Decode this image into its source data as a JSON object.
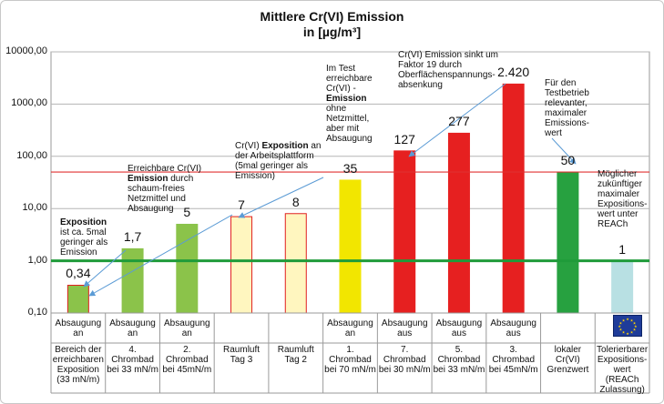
{
  "title_line1": "Mittlere Cr(VI) Emission",
  "title_line2": "in [µg/m³]",
  "chart_data": {
    "type": "bar",
    "y_scale": "log10",
    "ylim": [
      0.1,
      10000
    ],
    "y_ticks": [
      "0,10",
      "1,00",
      "10,00",
      "100,00",
      "1000,00",
      "10000,00"
    ],
    "y_tick_values": [
      0.1,
      1,
      10,
      100,
      1000,
      10000
    ],
    "reference_lines": [
      {
        "name": "lokaler Grenzwert",
        "value": 50,
        "color": "#e03030"
      },
      {
        "name": "Tolerierbarer Expositionswert",
        "value": 1,
        "color": "#1f9b3a"
      }
    ],
    "bars": [
      {
        "row1": "Absaugung an",
        "row2": "Bereich der erreichbaren Exposition (33 mN/m)",
        "value": 0.34,
        "label": "0,34",
        "fill": "#8bc34a",
        "stroke": "#e02020"
      },
      {
        "row1": "Absaugung an",
        "row2": "4. Chrombad bei 33 mN/m",
        "value": 1.7,
        "label": "1,7",
        "fill": "#8bc34a",
        "stroke": "#8bc34a"
      },
      {
        "row1": "Absaugung an",
        "row2": "2. Chrombad bei 45mN/m",
        "value": 5,
        "label": "5",
        "fill": "#8bc34a",
        "stroke": "#8bc34a"
      },
      {
        "row1": "",
        "row2": "Raumluft Tag 3",
        "value": 7,
        "label": "7",
        "fill": "#fff6bf",
        "stroke": "#e02020"
      },
      {
        "row1": "",
        "row2": "Raumluft Tag 2",
        "value": 8,
        "label": "8",
        "fill": "#fff6bf",
        "stroke": "#e02020"
      },
      {
        "row1": "Absaugung an",
        "row2": "1. Chrombad bei 70 mN/m",
        "value": 35,
        "label": "35",
        "fill": "#f2e600",
        "stroke": "#f2e600"
      },
      {
        "row1": "Absaugung aus",
        "row2": "7. Chrombad bei 30 mN/m",
        "value": 127,
        "label": "127",
        "fill": "#e62020",
        "stroke": "#e62020"
      },
      {
        "row1": "Absaugung aus",
        "row2": "5. Chrombad bei 33 mN/m",
        "value": 277,
        "label": "277",
        "fill": "#e62020",
        "stroke": "#e62020"
      },
      {
        "row1": "Absaugung aus",
        "row2": "3. Chrombad bei 45mN/m",
        "value": 2420,
        "label": "2.420",
        "fill": "#e62020",
        "stroke": "#e62020"
      },
      {
        "row1": "",
        "row2": "lokaler Cr(VI) Grenzwert",
        "value": 50,
        "label": "50",
        "fill": "#27a140",
        "stroke": "#27a140"
      },
      {
        "row1": "",
        "row2": "Tolerierbarer Expositions-wert (REACh Zulassung)",
        "value": 1,
        "label": "1",
        "fill": "#b8e0e3",
        "stroke": "#b8e0e3"
      }
    ],
    "annotations": {
      "a1_bold": "Exposition",
      "a1_text": "ist ca. 5mal geringer als Emission",
      "a2_pre": "Erreichbare Cr(VI)",
      "a2_bold": "Emission",
      "a2_text": "durch schaum-freies Netzmittel und Absaugung",
      "a3_pre": "Cr(VI)",
      "a3_bold": "Exposition",
      "a3_text": "an der Arbeitsplattform (5mal geringer als Emission)",
      "a4_pre": "Im Test erreichbare Cr(VI) -",
      "a4_bold": "Emission",
      "a4_text": "ohne Netzmittel, aber mit Absaugung",
      "a5_text": "Cr(VI) Emission sinkt um Faktor 19 durch Oberflächenspannungs-absenkung",
      "a6_text": "Für den Testbetrieb relevanter, maximaler Emissions-wert",
      "a7_text": "Möglicher zukünftiger maximaler Expositions-wert unter REACh"
    }
  }
}
